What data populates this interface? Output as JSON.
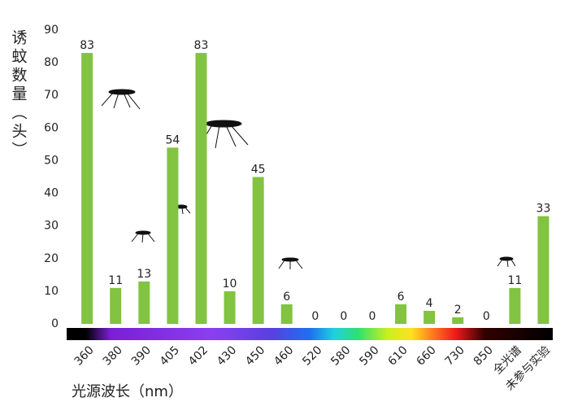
{
  "chart_data": {
    "type": "bar",
    "y_label": "诱蚊数量（头）",
    "x_label": "光源波长（nm）",
    "categories": [
      "360",
      "380",
      "390",
      "405",
      "402",
      "430",
      "450",
      "460",
      "520",
      "580",
      "590",
      "610",
      "660",
      "730",
      "850",
      "全光谱",
      "未参与实验"
    ],
    "values": [
      83,
      11,
      13,
      54,
      83,
      10,
      45,
      6,
      0,
      0,
      0,
      6,
      4,
      2,
      0,
      11,
      33
    ],
    "color": "#82c341",
    "ylim": [
      0,
      90
    ],
    "yticks": [
      0,
      10,
      20,
      30,
      40,
      50,
      60,
      70,
      80,
      90
    ]
  }
}
